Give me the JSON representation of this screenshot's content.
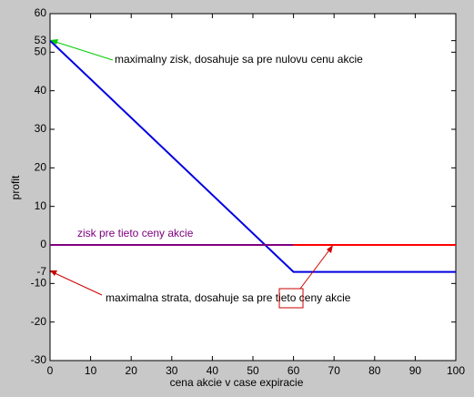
{
  "chart_data": {
    "type": "line",
    "xlabel": "cena akcie v case expiracie",
    "ylabel": "profit",
    "xlim": [
      0,
      100
    ],
    "xticks": [
      0,
      10,
      20,
      30,
      40,
      50,
      60,
      70,
      80,
      90,
      100
    ],
    "ylim": [
      -30,
      60
    ],
    "yticks": [
      -30,
      -20,
      -10,
      -7,
      0,
      10,
      20,
      30,
      40,
      50,
      53,
      60
    ],
    "series": [
      {
        "color": "#0000e0",
        "x": [
          0,
          60,
          100
        ],
        "values": [
          53,
          -7,
          -7
        ]
      },
      {
        "color": "#800080",
        "x": [
          0,
          60
        ],
        "values": [
          0,
          0
        ]
      },
      {
        "color": "#ff0000",
        "x": [
          60,
          100
        ],
        "values": [
          0,
          0
        ]
      }
    ],
    "annotations": [
      "maximalny zisk, dosahuje sa pre nulovu cenu akcie",
      "zisk pre tieto ceny akcie",
      "maximalna strata, dosahuje sa pre tieto ceny akcie"
    ]
  }
}
